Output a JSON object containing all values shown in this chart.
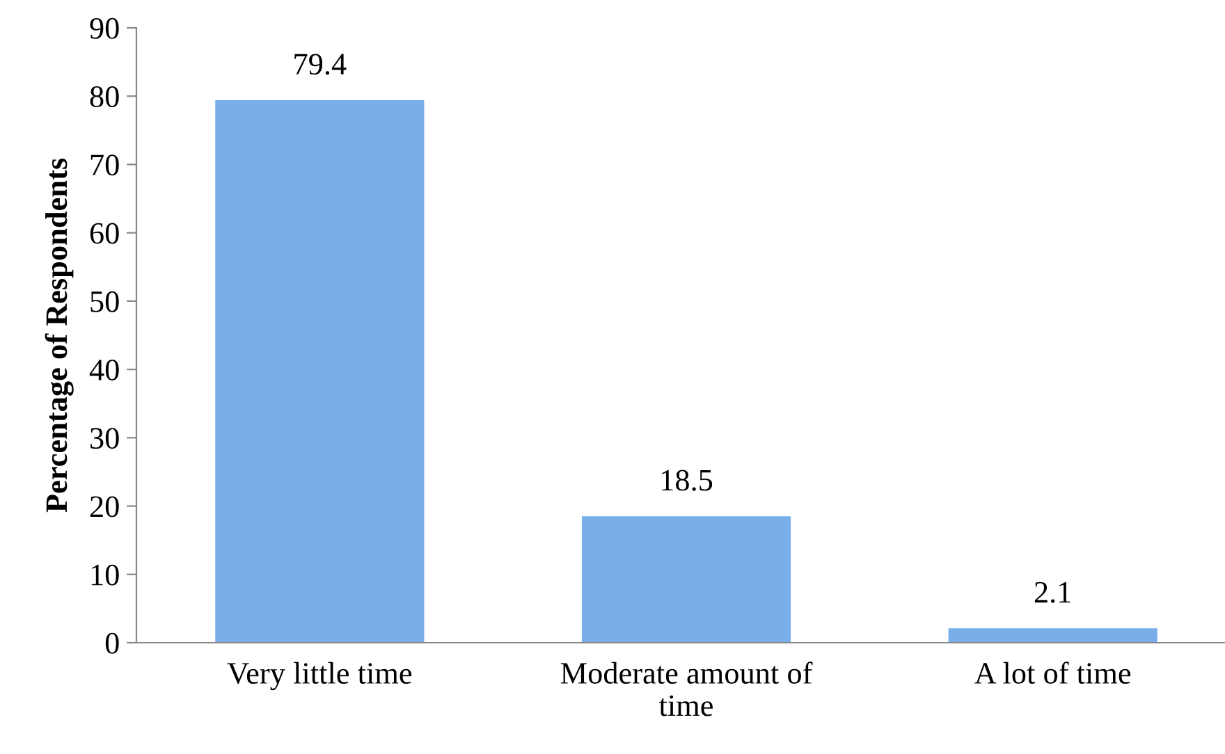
{
  "chart_data": {
    "type": "bar",
    "ylabel": "Percentage of Respondents",
    "categories": [
      "Very little time",
      "Moderate amount of\ntime",
      "A lot of time"
    ],
    "values": [
      79.4,
      18.5,
      2.1
    ],
    "color": "#7aaeea",
    "ylim": [
      0,
      90
    ],
    "yticks": [
      0,
      10,
      20,
      30,
      40,
      50,
      60,
      70,
      80,
      90
    ],
    "data_labels": true,
    "grid": false,
    "legend": false
  }
}
